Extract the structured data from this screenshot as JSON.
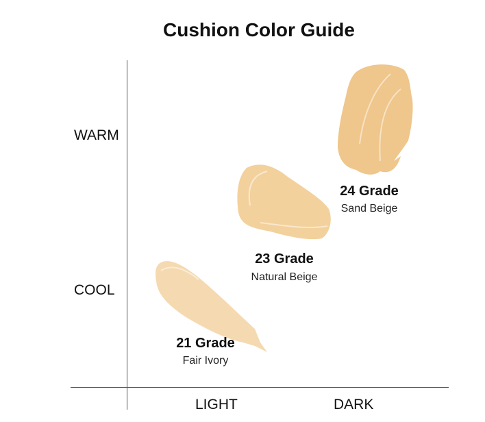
{
  "title": "Cushion Color Guide",
  "axes": {
    "y_top": "WARM",
    "y_bottom": "COOL",
    "x_left": "LIGHT",
    "x_right": "DARK"
  },
  "shades": [
    {
      "grade": "21 Grade",
      "name": "Fair Ivory",
      "color": "#f5d9b0"
    },
    {
      "grade": "23 Grade",
      "name": "Natural Beige",
      "color": "#f3d19c"
    },
    {
      "grade": "24 Grade",
      "name": "Sand Beige",
      "color": "#efc68b"
    }
  ]
}
